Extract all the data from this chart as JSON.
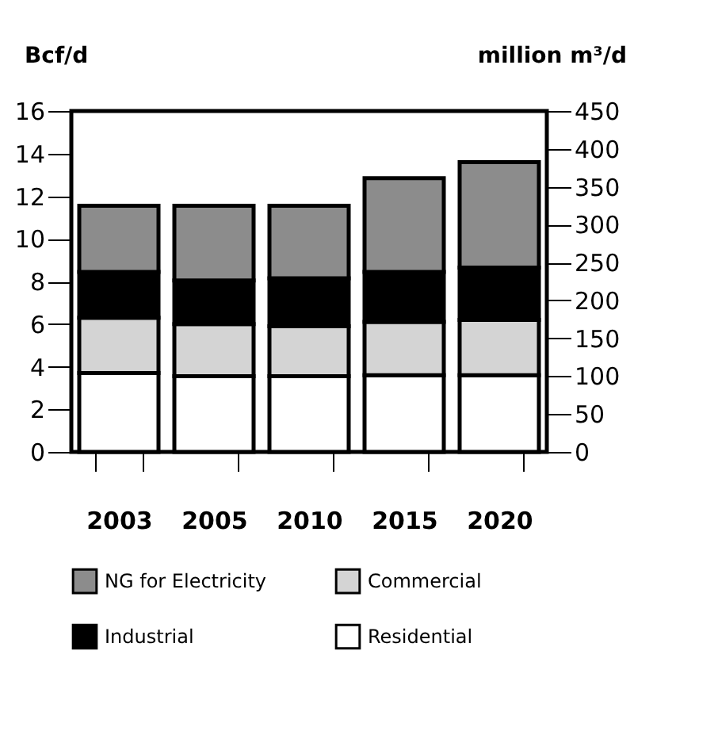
{
  "chart_data": {
    "type": "bar",
    "stacked": true,
    "ylabel": "Bcf/d",
    "y2label": "million m³/d",
    "categories": [
      "2003",
      "2005",
      "2010",
      "2015",
      "2020"
    ],
    "series": [
      {
        "name": "Residential",
        "color": "#ffffff",
        "values": [
          3.7,
          3.55,
          3.55,
          3.6,
          3.6
        ]
      },
      {
        "name": "Commercial",
        "color": "#d4d4d4",
        "values": [
          2.6,
          2.45,
          2.35,
          2.5,
          2.6
        ]
      },
      {
        "name": "Industrial",
        "color": "#000000",
        "values": [
          2.15,
          2.05,
          2.25,
          2.35,
          2.45
        ]
      },
      {
        "name": "NG for Electricity",
        "color": "#8c8c8c",
        "values": [
          3.1,
          3.5,
          3.4,
          4.4,
          4.95
        ]
      }
    ],
    "ylim": [
      0,
      16
    ],
    "yticks": [
      0,
      2,
      4,
      6,
      8,
      10,
      12,
      14,
      16
    ],
    "y2lim": [
      0,
      450
    ],
    "y2ticks": [
      0,
      50,
      100,
      150,
      200,
      250,
      300,
      350,
      400,
      450
    ],
    "grid": false,
    "legend": "bottom"
  }
}
